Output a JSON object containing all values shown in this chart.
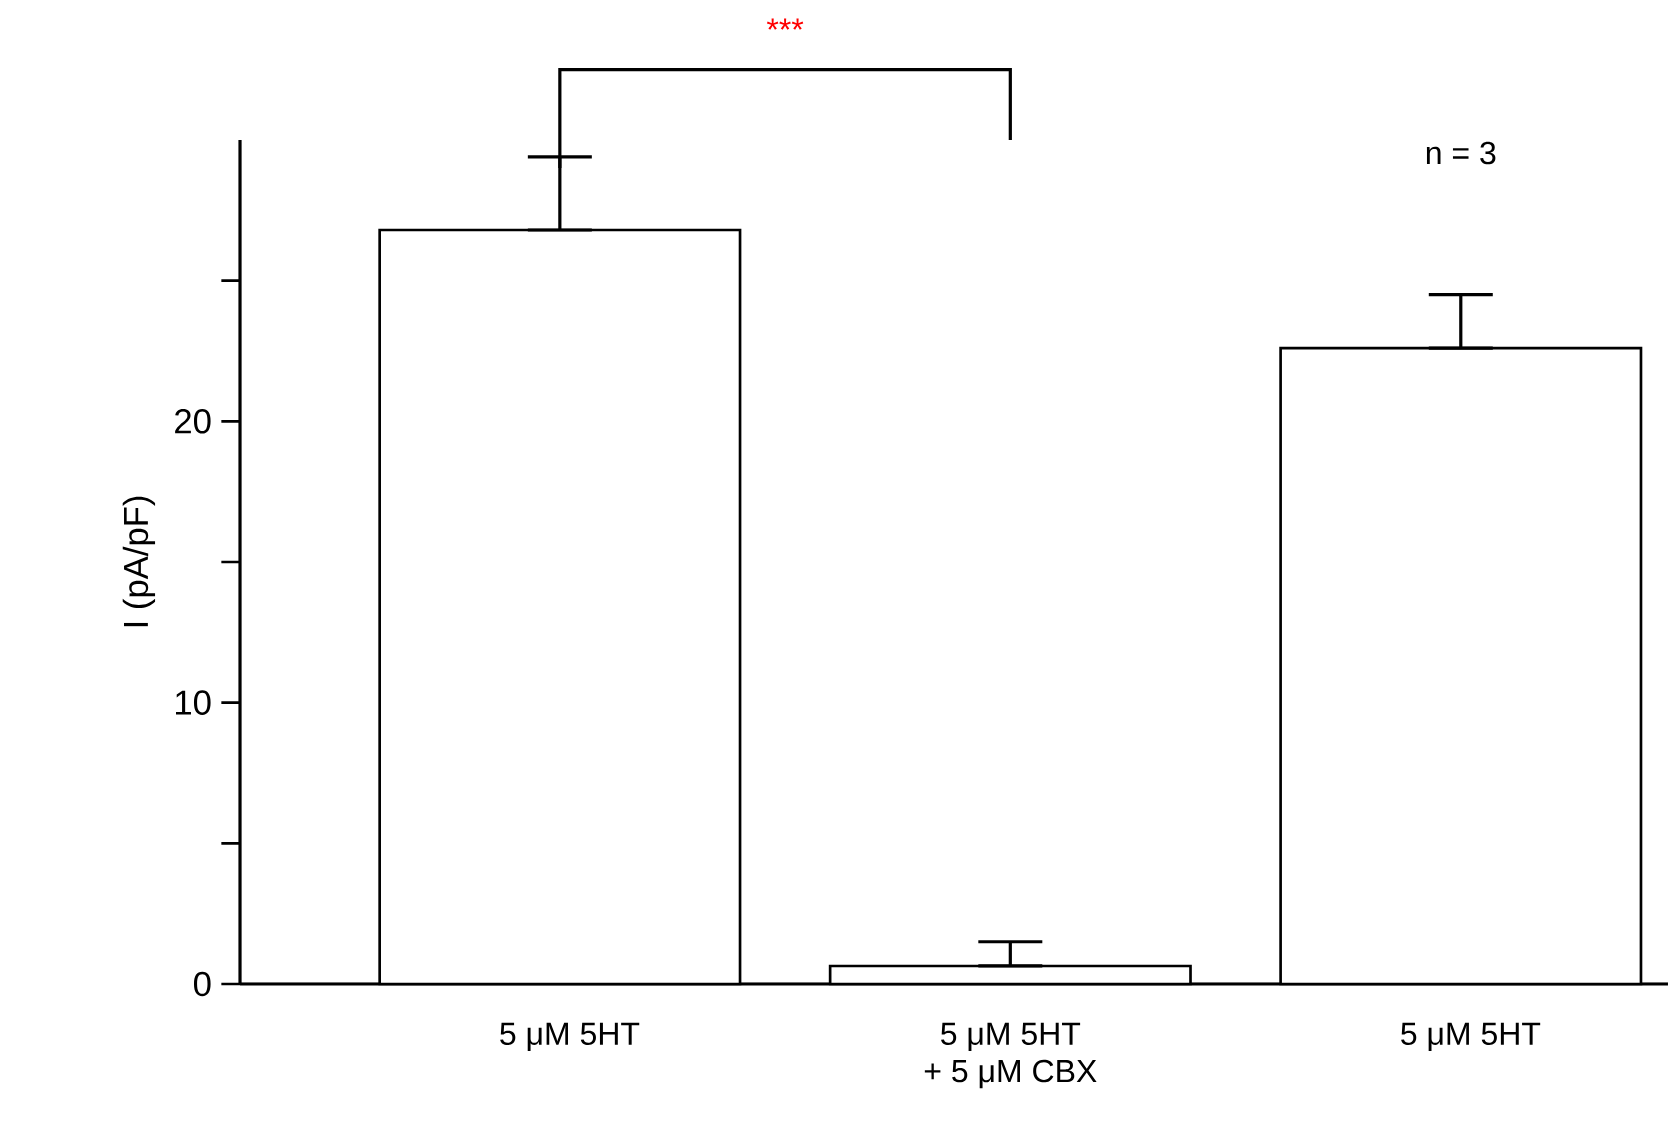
{
  "chart_data": {
    "type": "bar",
    "ylabel": "I (pA/pF)",
    "categories": [
      "5 μM 5HT",
      "5 μM 5HT + 5 μM CBX",
      "5 μM 5HT"
    ],
    "values": [
      26.8,
      0.64,
      22.6
    ],
    "errors": [
      [
        26.8,
        29.4
      ],
      [
        0.64,
        1.5
      ],
      [
        22.6,
        24.5
      ]
    ],
    "color": "#ffffff",
    "ylim": [
      0,
      30
    ],
    "yticks": [
      0,
      {
        "value": 5,
        "label": null
      },
      10,
      {
        "value": 15,
        "label": null
      },
      20,
      {
        "value": 25,
        "label": null
      }
    ],
    "annotations": [
      "***",
      "n = 3"
    ],
    "grid": false
  }
}
